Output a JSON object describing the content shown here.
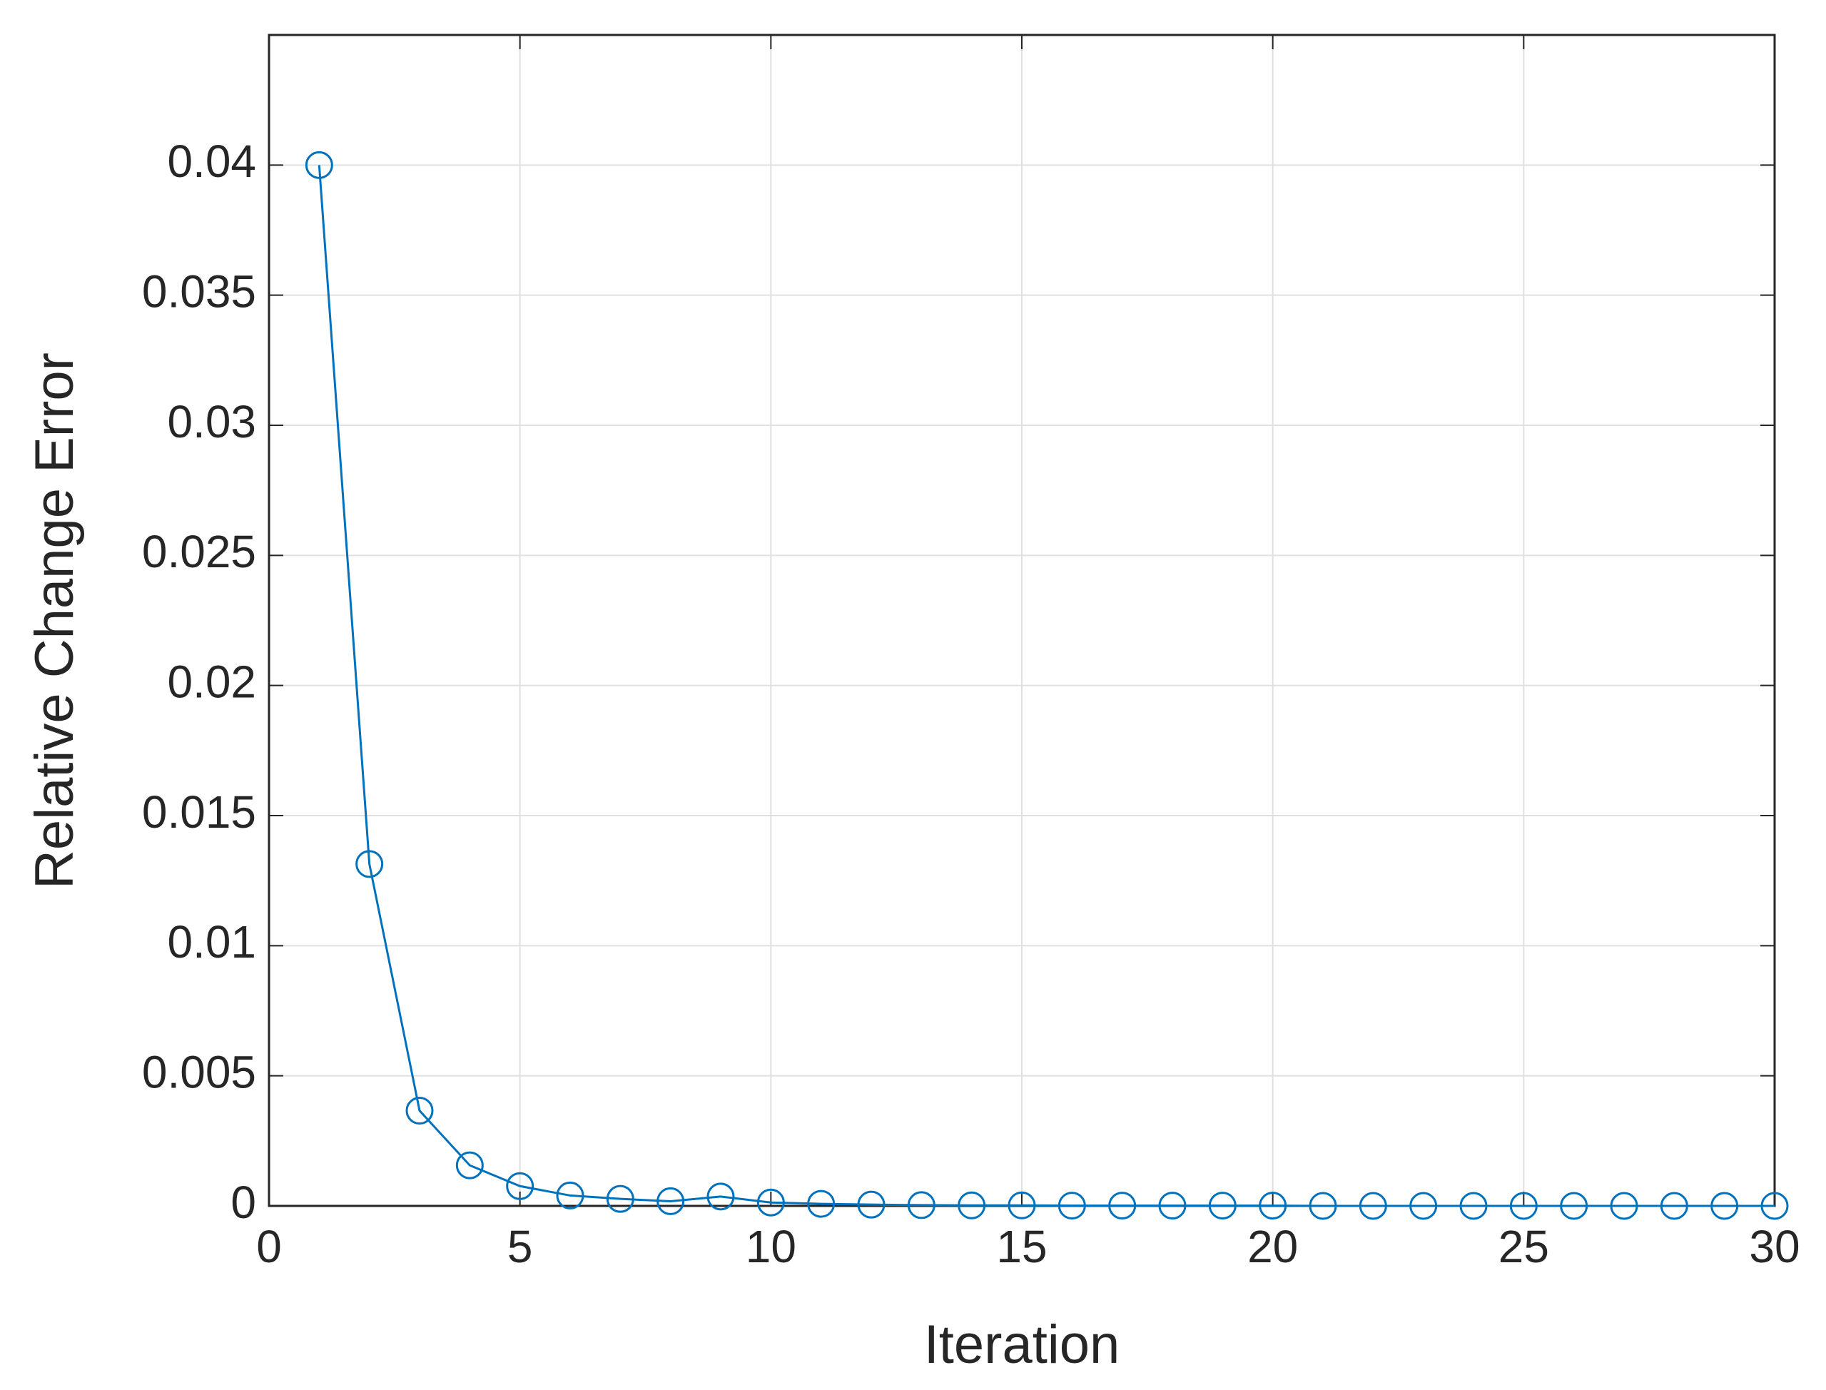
{
  "chart_data": {
    "type": "line",
    "x_label": "Iteration",
    "y_label": "Relative Change Error",
    "x": [
      1,
      2,
      3,
      4,
      5,
      6,
      7,
      8,
      9,
      10,
      11,
      12,
      13,
      14,
      15,
      16,
      17,
      18,
      19,
      20,
      21,
      22,
      23,
      24,
      25,
      26,
      27,
      28,
      29,
      30
    ],
    "values": [
      0.04,
      0.01314,
      0.00366,
      0.00156,
      0.00076,
      0.0004,
      0.00027,
      0.00018,
      0.00036,
      0.00013,
      8e-05,
      5e-05,
      3e-05,
      2e-05,
      2e-05,
      1e-05,
      1e-05,
      1e-05,
      1e-05,
      1e-05,
      0,
      0,
      0,
      0,
      0,
      0,
      0,
      0,
      0,
      0
    ],
    "color": "#0072bd",
    "xlim": [
      0,
      30
    ],
    "xticks": [
      0,
      5,
      10,
      15,
      20,
      25,
      30
    ],
    "ylim": [
      0,
      0.045
    ],
    "yticks": [
      0,
      0.005,
      0.01,
      0.015,
      0.02,
      0.025,
      0.03,
      0.035,
      0.04
    ],
    "grid": true
  }
}
